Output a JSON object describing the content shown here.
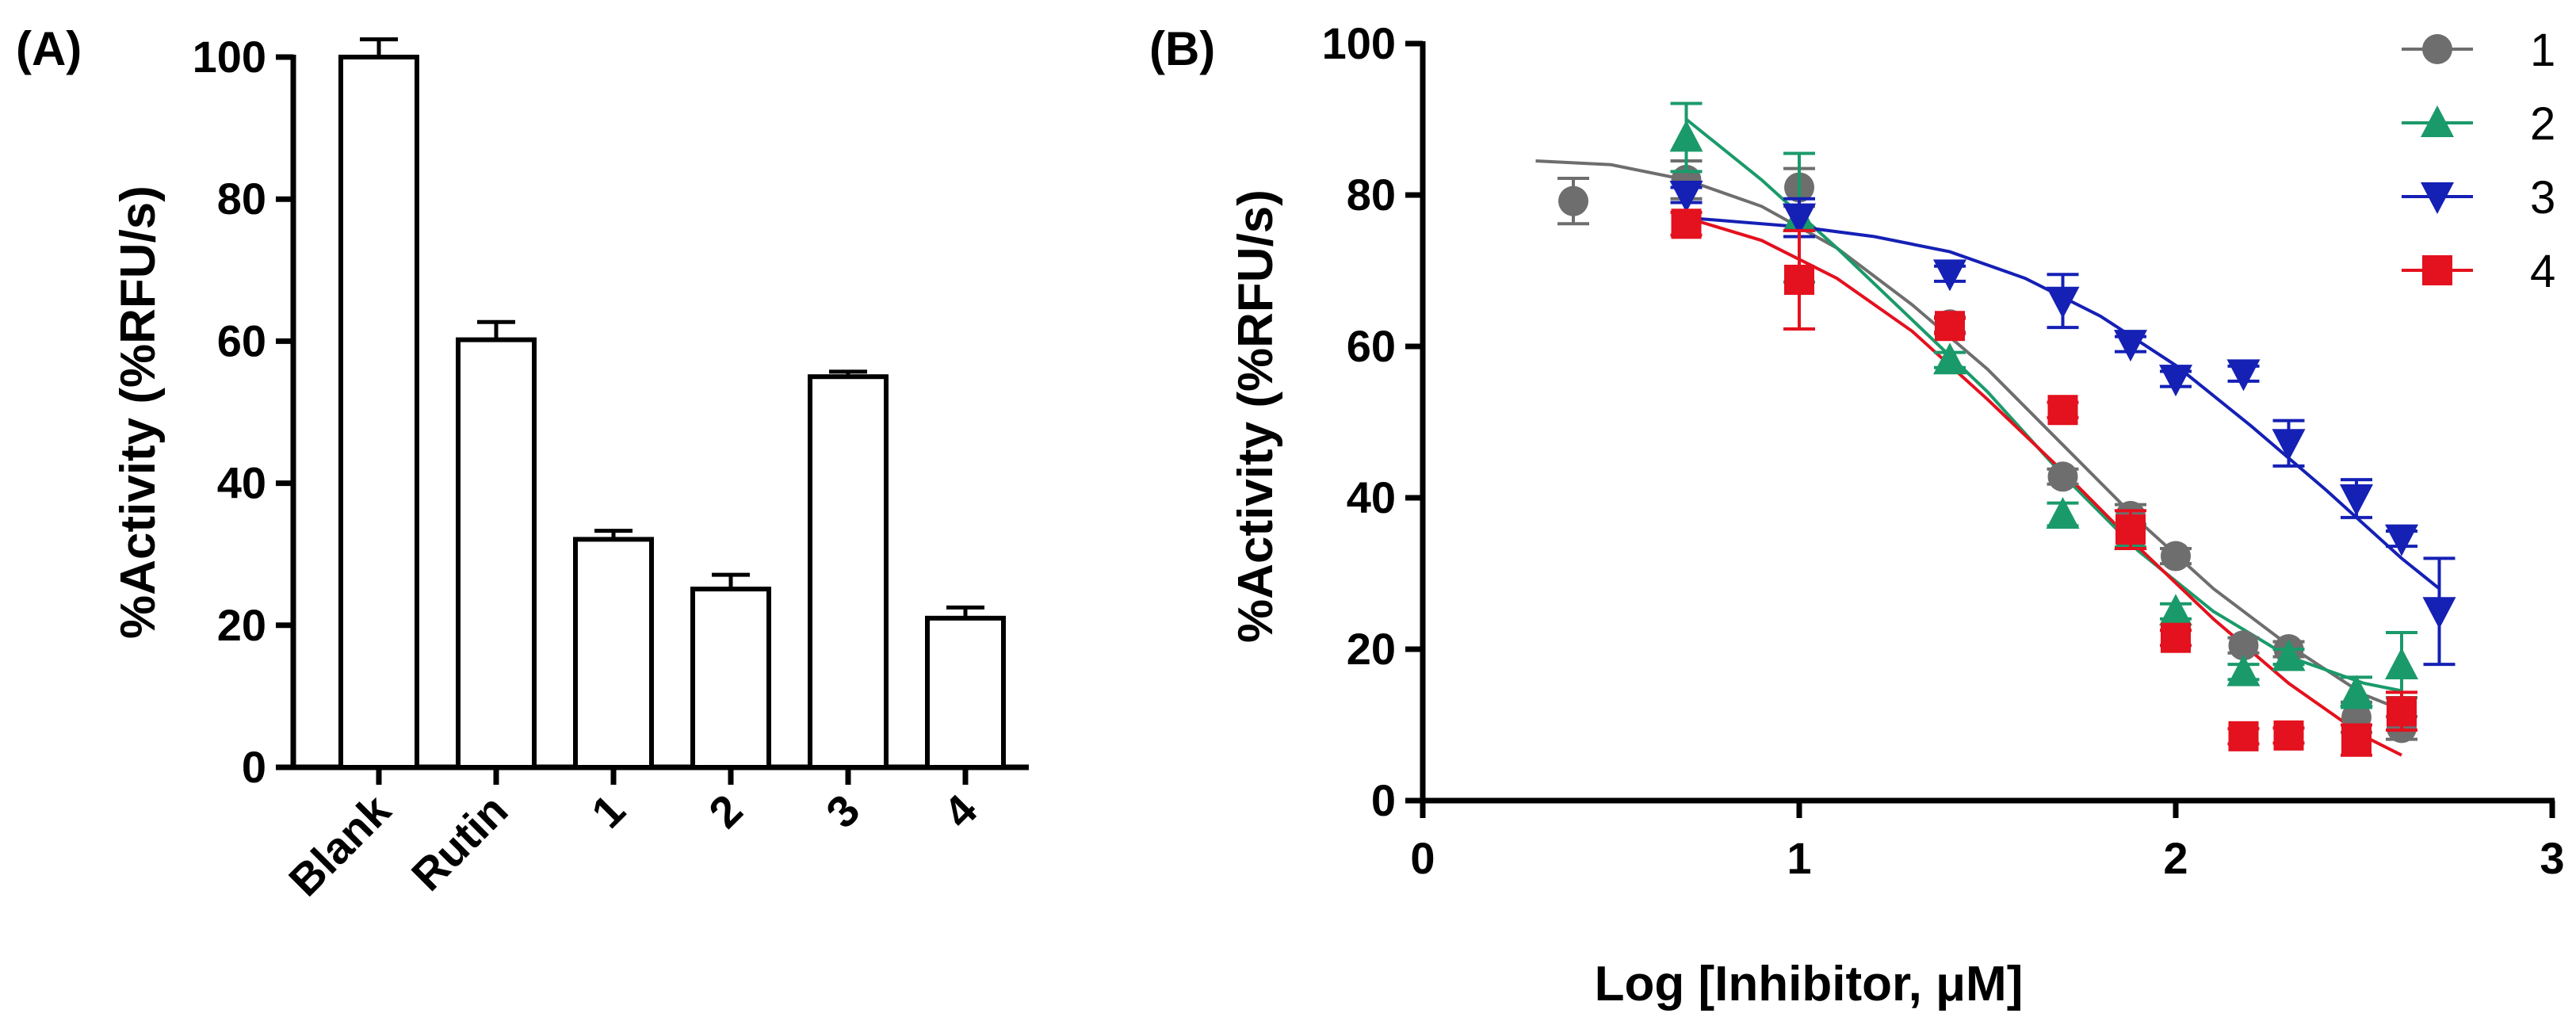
{
  "chart_data": [
    {
      "panel_label": "(A)",
      "type": "bar",
      "title": "",
      "xlabel": "",
      "ylabel": "%Activity (%RFU/s)",
      "ylim": [
        0,
        100
      ],
      "yticks": [
        0,
        20,
        40,
        60,
        80,
        100
      ],
      "ytick_labels": [
        "0",
        "20",
        "40",
        "60",
        "80",
        "100"
      ],
      "categories": [
        "Blank",
        "Rutin",
        "1",
        "2",
        "3",
        "4"
      ],
      "values": [
        100,
        60.2,
        32.1,
        25.1,
        55.0,
        21.0
      ],
      "errors": [
        2.5,
        2.5,
        1.2,
        2.0,
        0.7,
        1.5
      ],
      "grid": false
    },
    {
      "panel_label": "(B)",
      "type": "scatter",
      "title": "",
      "xlabel": "Log [Inhibitor, μM]",
      "ylabel": "%Activity (%RFU/s)",
      "xlim": [
        0,
        3
      ],
      "ylim": [
        0,
        100
      ],
      "xticks": [
        0,
        1,
        2,
        3
      ],
      "xtick_labels": [
        "0",
        "1",
        "2",
        "3"
      ],
      "yticks": [
        0,
        20,
        40,
        60,
        80,
        100
      ],
      "ytick_labels": [
        "0",
        "20",
        "40",
        "60",
        "80",
        "100"
      ],
      "legend_position": "top-right",
      "grid": false,
      "series": [
        {
          "name": "1",
          "color": "#6e6e6e",
          "marker": "circle",
          "x": [
            0.4,
            0.7,
            1.0,
            1.4,
            1.7,
            1.88,
            2.0,
            2.18,
            2.3,
            2.48,
            2.6
          ],
          "y": [
            79.2,
            82.0,
            81.0,
            62.9,
            42.8,
            37.6,
            32.3,
            20.5,
            20.0,
            11.0,
            9.6
          ],
          "err": [
            3.0,
            2.5,
            2.5,
            1.0,
            1.0,
            1.5,
            1.0,
            1.0,
            1.0,
            2.0,
            1.5
          ],
          "fit": [
            [
              0.3,
              84.5
            ],
            [
              0.5,
              84.0
            ],
            [
              0.7,
              82.0
            ],
            [
              0.9,
              78.5
            ],
            [
              1.1,
              73.0
            ],
            [
              1.3,
              65.5
            ],
            [
              1.5,
              57.0
            ],
            [
              1.7,
              47.0
            ],
            [
              1.9,
              37.0
            ],
            [
              2.1,
              28.0
            ],
            [
              2.3,
              20.5
            ],
            [
              2.5,
              14.0
            ],
            [
              2.6,
              12.0
            ]
          ]
        },
        {
          "name": "2",
          "color": "#1a9a6a",
          "marker": "triangle-up",
          "x": [
            0.7,
            1.0,
            1.4,
            1.7,
            1.88,
            2.0,
            2.18,
            2.3,
            2.48,
            2.6
          ],
          "y": [
            87.6,
            77.0,
            58.2,
            37.8,
            35.0,
            25.0,
            17.0,
            19.0,
            14.3,
            17.9
          ],
          "err": [
            4.5,
            8.5,
            1.0,
            1.5,
            1.5,
            1.0,
            1.0,
            1.0,
            2.0,
            4.3
          ],
          "fit": [
            [
              0.7,
              90.0
            ],
            [
              0.9,
              82.0
            ],
            [
              1.1,
              73.0
            ],
            [
              1.3,
              63.5
            ],
            [
              1.5,
              54.0
            ],
            [
              1.7,
              43.0
            ],
            [
              1.9,
              33.0
            ],
            [
              2.1,
              25.0
            ],
            [
              2.3,
              19.0
            ],
            [
              2.5,
              15.5
            ],
            [
              2.6,
              14.5
            ]
          ]
        },
        {
          "name": "3",
          "color": "#1520b5",
          "marker": "triangle-down",
          "x": [
            0.7,
            1.0,
            1.4,
            1.7,
            1.88,
            2.0,
            2.18,
            2.3,
            2.48,
            2.6,
            2.7
          ],
          "y": [
            80.0,
            77.0,
            69.6,
            66.0,
            60.3,
            55.7,
            56.4,
            47.2,
            39.9,
            34.6,
            25.0
          ],
          "err": [
            1.0,
            2.5,
            1.0,
            3.5,
            1.0,
            1.0,
            1.0,
            3.0,
            2.5,
            1.0,
            7.0
          ],
          "fit": [
            [
              0.7,
              77.0
            ],
            [
              1.0,
              75.8
            ],
            [
              1.2,
              74.5
            ],
            [
              1.4,
              72.5
            ],
            [
              1.6,
              69.0
            ],
            [
              1.8,
              64.0
            ],
            [
              2.0,
              57.5
            ],
            [
              2.2,
              49.5
            ],
            [
              2.4,
              41.0
            ],
            [
              2.6,
              32.0
            ],
            [
              2.7,
              28.0
            ]
          ]
        },
        {
          "name": "4",
          "color": "#e4111e",
          "marker": "square",
          "x": [
            0.7,
            1.0,
            1.4,
            1.7,
            1.88,
            2.0,
            2.18,
            2.3,
            2.48,
            2.6
          ],
          "y": [
            76.2,
            68.8,
            62.7,
            51.6,
            35.8,
            21.5,
            8.5,
            8.6,
            8.0,
            11.8
          ],
          "err": [
            1.5,
            6.5,
            1.0,
            1.0,
            2.5,
            1.0,
            1.0,
            1.0,
            2.0,
            2.5
          ],
          "fit": [
            [
              0.7,
              77.0
            ],
            [
              0.9,
              74.0
            ],
            [
              1.1,
              69.0
            ],
            [
              1.3,
              62.0
            ],
            [
              1.5,
              53.0
            ],
            [
              1.7,
              43.5
            ],
            [
              1.9,
              33.5
            ],
            [
              2.1,
              24.0
            ],
            [
              2.3,
              15.5
            ],
            [
              2.5,
              8.5
            ],
            [
              2.6,
              6.0
            ]
          ]
        }
      ]
    }
  ]
}
